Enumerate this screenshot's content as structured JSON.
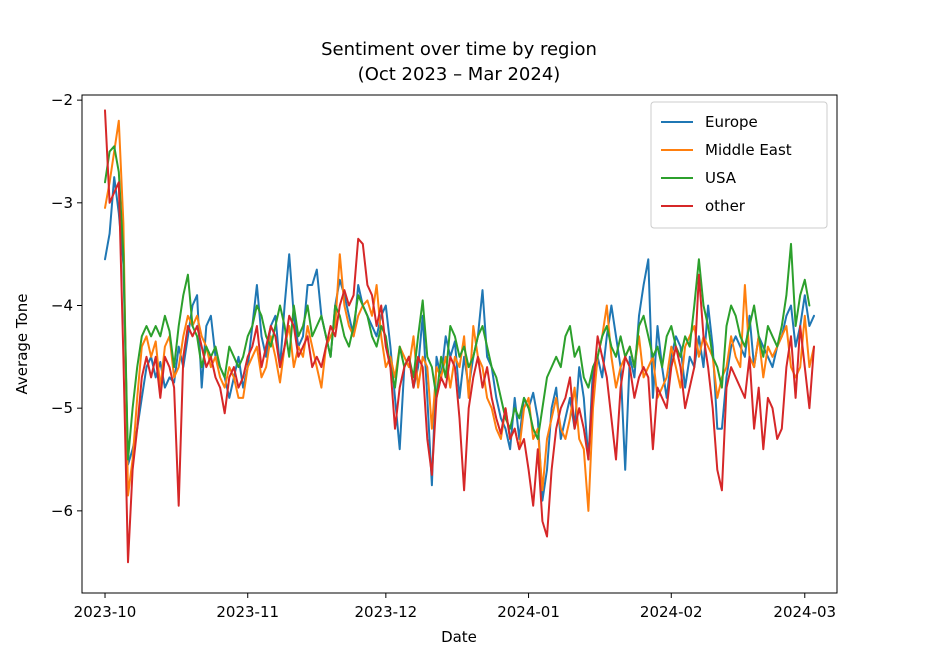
{
  "chart_data": {
    "type": "line",
    "title": "Sentiment over time by region",
    "subtitle": "(Oct 2023 – Mar 2024)",
    "xlabel": "Date",
    "ylabel": "Average Tone",
    "x_start": "2023-10-01",
    "x_end": "2024-03-04",
    "xlim": [
      "2023-09-26",
      "2024-03-08"
    ],
    "ylim": [
      -6.8,
      -1.95
    ],
    "x_ticks": [
      {
        "label": "2023-10",
        "date": "2023-10-01"
      },
      {
        "label": "2023-11",
        "date": "2023-11-01"
      },
      {
        "label": "2023-12",
        "date": "2023-12-01"
      },
      {
        "label": "2024-01",
        "date": "2024-01-01"
      },
      {
        "label": "2024-02",
        "date": "2024-02-01"
      },
      {
        "label": "2024-03",
        "date": "2024-03-01"
      }
    ],
    "y_ticks": [
      {
        "label": "−2",
        "value": -2
      },
      {
        "label": "−3",
        "value": -3
      },
      {
        "label": "−4",
        "value": -4
      },
      {
        "label": "−5",
        "value": -5
      },
      {
        "label": "−6",
        "value": -6
      }
    ],
    "grid": false,
    "legend_position": "top-right",
    "series": [
      {
        "name": "Europe",
        "color": "#1f77b4",
        "values": [
          -3.55,
          -3.3,
          -2.75,
          -3.1,
          -3.6,
          -5.55,
          -5.4,
          -5.2,
          -4.9,
          -4.6,
          -4.5,
          -4.7,
          -4.55,
          -4.8,
          -4.7,
          -4.75,
          -4.4,
          -4.6,
          -4.3,
          -4.0,
          -3.9,
          -4.8,
          -4.2,
          -4.1,
          -4.5,
          -4.6,
          -4.7,
          -4.9,
          -4.7,
          -4.5,
          -4.8,
          -4.6,
          -4.2,
          -3.8,
          -4.3,
          -4.5,
          -4.2,
          -4.1,
          -4.6,
          -4.0,
          -3.5,
          -4.1,
          -4.4,
          -4.3,
          -3.8,
          -3.8,
          -3.65,
          -4.1,
          -4.3,
          -4.5,
          -4.0,
          -3.75,
          -3.9,
          -4.1,
          -4.3,
          -3.8,
          -4.0,
          -4.1,
          -4.2,
          -4.3,
          -4.1,
          -4.0,
          -4.4,
          -4.9,
          -5.4,
          -4.6,
          -4.5,
          -4.8,
          -4.6,
          -4.1,
          -4.9,
          -5.75,
          -4.5,
          -4.7,
          -4.3,
          -4.5,
          -4.35,
          -4.9,
          -4.5,
          -4.8,
          -4.5,
          -4.3,
          -3.85,
          -4.5,
          -4.6,
          -4.9,
          -5.1,
          -5.2,
          -5.4,
          -4.9,
          -5.3,
          -4.9,
          -5.0,
          -4.85,
          -5.1,
          -5.9,
          -5.6,
          -5.0,
          -4.8,
          -5.3,
          -5.1,
          -4.9,
          -5.2,
          -4.6,
          -4.9,
          -5.5,
          -4.6,
          -4.5,
          -4.7,
          -4.3,
          -4.0,
          -4.3,
          -4.6,
          -5.6,
          -4.5,
          -4.7,
          -4.1,
          -3.8,
          -3.55,
          -4.9,
          -4.2,
          -4.6,
          -4.9,
          -4.5,
          -4.3,
          -4.4,
          -4.8,
          -4.5,
          -4.6,
          -4.3,
          -4.6,
          -4.0,
          -4.4,
          -5.2,
          -5.2,
          -4.7,
          -4.4,
          -4.3,
          -4.4,
          -4.5,
          -4.1,
          -4.6,
          -4.3,
          -4.4,
          -4.5,
          -4.6,
          -4.4,
          -4.3,
          -4.1,
          -4.0,
          -4.4,
          -4.2,
          -3.9,
          -4.2,
          -4.1
        ]
      },
      {
        "name": "Middle East",
        "color": "#ff7f0e",
        "values": [
          -3.05,
          -2.8,
          -2.5,
          -2.2,
          -3.2,
          -5.85,
          -5.5,
          -4.9,
          -4.4,
          -4.3,
          -4.5,
          -4.35,
          -4.8,
          -4.4,
          -4.3,
          -4.7,
          -4.6,
          -4.3,
          -4.1,
          -4.2,
          -4.1,
          -4.3,
          -4.4,
          -4.6,
          -4.5,
          -4.7,
          -4.8,
          -4.6,
          -4.7,
          -4.9,
          -4.9,
          -4.6,
          -4.5,
          -4.4,
          -4.7,
          -4.6,
          -4.3,
          -4.5,
          -4.75,
          -4.4,
          -4.2,
          -4.6,
          -4.4,
          -4.5,
          -4.2,
          -4.4,
          -4.6,
          -4.8,
          -4.4,
          -4.3,
          -4.2,
          -3.5,
          -4.0,
          -4.2,
          -4.3,
          -4.1,
          -4.0,
          -3.95,
          -4.1,
          -3.8,
          -4.3,
          -4.6,
          -4.5,
          -4.7,
          -4.4,
          -4.5,
          -4.6,
          -4.3,
          -4.8,
          -4.5,
          -4.6,
          -5.2,
          -4.6,
          -4.7,
          -4.5,
          -4.8,
          -4.5,
          -4.6,
          -4.3,
          -4.9,
          -4.2,
          -4.5,
          -4.6,
          -4.9,
          -5.0,
          -5.2,
          -5.3,
          -5.0,
          -5.3,
          -5.2,
          -5.4,
          -5.0,
          -4.9,
          -5.3,
          -5.2,
          -5.8,
          -5.3,
          -5.1,
          -4.9,
          -5.2,
          -5.3,
          -5.1,
          -4.8,
          -5.3,
          -5.4,
          -6.0,
          -5.0,
          -4.5,
          -4.3,
          -4.0,
          -4.5,
          -4.8,
          -4.6,
          -4.5,
          -4.4,
          -4.6,
          -4.3,
          -4.7,
          -4.6,
          -4.5,
          -4.9,
          -4.8,
          -4.7,
          -4.4,
          -4.6,
          -4.8,
          -4.4,
          -4.3,
          -4.2,
          -4.5,
          -4.3,
          -4.4,
          -4.5,
          -4.9,
          -4.7,
          -4.6,
          -4.3,
          -4.5,
          -4.6,
          -3.8,
          -4.5,
          -4.6,
          -4.3,
          -4.7,
          -4.4,
          -4.5,
          -4.4,
          -4.3,
          -4.2,
          -4.6,
          -4.7,
          -4.6,
          -4.1,
          -4.6,
          -4.4
        ]
      },
      {
        "name": "USA",
        "color": "#2ca02c",
        "values": [
          -2.8,
          -2.5,
          -2.45,
          -2.7,
          -3.5,
          -5.5,
          -5.0,
          -4.6,
          -4.3,
          -4.2,
          -4.3,
          -4.2,
          -4.3,
          -4.1,
          -4.25,
          -4.6,
          -4.2,
          -3.9,
          -3.7,
          -4.2,
          -4.3,
          -4.6,
          -4.4,
          -4.5,
          -4.4,
          -4.6,
          -4.7,
          -4.4,
          -4.5,
          -4.6,
          -4.5,
          -4.3,
          -4.2,
          -4.0,
          -4.1,
          -4.3,
          -4.4,
          -4.2,
          -4.0,
          -4.2,
          -4.5,
          -4.0,
          -4.3,
          -4.2,
          -4.0,
          -4.3,
          -4.2,
          -4.1,
          -4.3,
          -4.5,
          -4.0,
          -4.1,
          -4.3,
          -4.4,
          -4.2,
          -3.9,
          -4.0,
          -4.1,
          -4.3,
          -4.4,
          -4.2,
          -4.3,
          -4.6,
          -4.8,
          -4.4,
          -4.6,
          -4.5,
          -4.7,
          -4.3,
          -3.95,
          -4.5,
          -4.6,
          -4.9,
          -4.5,
          -4.7,
          -4.2,
          -4.3,
          -4.5,
          -4.4,
          -4.6,
          -4.5,
          -4.3,
          -4.2,
          -4.4,
          -4.6,
          -4.7,
          -4.9,
          -5.1,
          -5.2,
          -5.0,
          -5.1,
          -4.9,
          -5.0,
          -5.2,
          -5.3,
          -5.0,
          -4.7,
          -4.6,
          -4.5,
          -4.6,
          -4.3,
          -4.2,
          -4.5,
          -4.4,
          -4.7,
          -4.8,
          -4.6,
          -4.5,
          -4.3,
          -4.2,
          -4.4,
          -4.5,
          -4.3,
          -4.5,
          -4.4,
          -4.6,
          -4.2,
          -4.1,
          -4.3,
          -4.5,
          -4.4,
          -4.6,
          -4.3,
          -4.2,
          -4.4,
          -4.5,
          -4.3,
          -4.4,
          -4.0,
          -3.55,
          -4.0,
          -4.2,
          -4.5,
          -4.6,
          -4.8,
          -4.2,
          -4.0,
          -4.1,
          -4.3,
          -4.4,
          -4.2,
          -4.0,
          -4.3,
          -4.5,
          -4.2,
          -4.3,
          -4.4,
          -4.2,
          -3.9,
          -3.4,
          -4.2,
          -3.9,
          -3.75,
          -4.0
        ]
      },
      {
        "name": "other",
        "color": "#d62728",
        "values": [
          -2.1,
          -3.0,
          -2.9,
          -2.8,
          -4.5,
          -6.5,
          -5.6,
          -5.2,
          -4.7,
          -4.5,
          -4.7,
          -4.5,
          -4.9,
          -4.5,
          -4.6,
          -4.8,
          -5.95,
          -4.5,
          -4.2,
          -4.3,
          -4.2,
          -4.4,
          -4.6,
          -4.5,
          -4.7,
          -4.8,
          -5.05,
          -4.7,
          -4.6,
          -4.8,
          -4.7,
          -4.5,
          -4.4,
          -4.2,
          -4.6,
          -4.4,
          -4.2,
          -4.3,
          -4.6,
          -4.4,
          -4.1,
          -4.2,
          -4.5,
          -4.4,
          -4.3,
          -4.6,
          -4.5,
          -4.6,
          -4.4,
          -4.2,
          -4.3,
          -4.0,
          -3.85,
          -4.0,
          -3.9,
          -3.35,
          -3.4,
          -3.8,
          -3.9,
          -4.2,
          -4.0,
          -4.4,
          -4.6,
          -5.2,
          -4.8,
          -4.6,
          -4.5,
          -4.8,
          -4.5,
          -4.6,
          -5.3,
          -5.65,
          -4.9,
          -4.7,
          -4.8,
          -4.5,
          -4.6,
          -5.1,
          -5.8,
          -5.0,
          -4.7,
          -4.5,
          -4.8,
          -4.6,
          -4.9,
          -5.1,
          -5.25,
          -5.0,
          -5.3,
          -5.2,
          -5.4,
          -5.3,
          -5.6,
          -5.95,
          -5.4,
          -6.1,
          -6.25,
          -5.6,
          -5.2,
          -5.0,
          -4.9,
          -4.7,
          -5.2,
          -5.0,
          -5.2,
          -5.5,
          -4.8,
          -4.3,
          -4.5,
          -4.7,
          -5.1,
          -5.5,
          -4.8,
          -4.5,
          -4.6,
          -4.9,
          -4.7,
          -4.6,
          -4.7,
          -5.4,
          -4.8,
          -4.9,
          -5.0,
          -4.6,
          -4.4,
          -4.6,
          -5.0,
          -4.8,
          -4.6,
          -3.7,
          -4.3,
          -4.6,
          -5.0,
          -5.6,
          -5.8,
          -4.8,
          -4.6,
          -4.7,
          -4.8,
          -4.9,
          -4.5,
          -5.2,
          -4.8,
          -5.4,
          -4.9,
          -5.0,
          -5.3,
          -5.2,
          -4.6,
          -4.3,
          -4.9,
          -4.2,
          -4.6,
          -5.0,
          -4.4
        ]
      }
    ]
  }
}
